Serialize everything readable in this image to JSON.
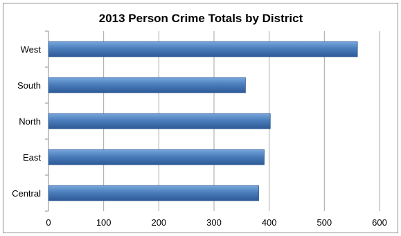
{
  "chart_data": {
    "type": "bar",
    "orientation": "horizontal",
    "title": "2013 Person Crime Totals by District",
    "categories": [
      "Central",
      "East",
      "North",
      "South",
      "West"
    ],
    "values": [
      381,
      391,
      402,
      357,
      560
    ],
    "xlabel": "",
    "ylabel": "",
    "xlim": [
      0,
      600
    ],
    "xticks": [
      "0",
      "100",
      "200",
      "300",
      "400",
      "500",
      "600"
    ],
    "grid": "vertical",
    "legend": "none",
    "bar_color": "#4a7ebb",
    "bar_color_light": "#7aa7dd",
    "bar_color_dark": "#2e5a96",
    "grid_color": "#a6a6a6"
  }
}
